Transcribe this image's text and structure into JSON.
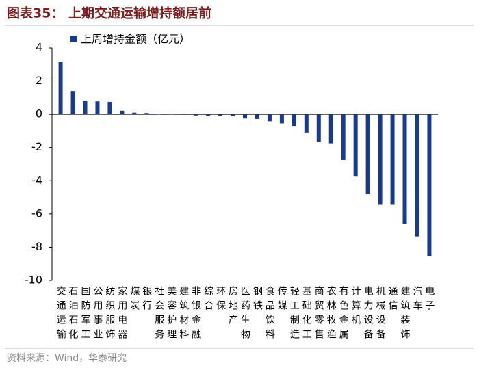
{
  "chart_data": {
    "type": "bar",
    "title": "图表35： 上期交通运输增持额居前",
    "source": "资料来源：Wind，华泰研究",
    "categories": [
      "交通运输",
      "石油石化",
      "国防军工",
      "公用事业",
      "纺织服饰",
      "家用电器",
      "煤炭",
      "银行",
      "社会服务",
      "美容护理",
      "建筑材料",
      "非银金融",
      "综合",
      "环保",
      "房地产",
      "医药生物",
      "钢铁",
      "食品饮料",
      "传媒",
      "轻工制造",
      "基础化工",
      "商贸零售",
      "农林牧渔",
      "有色金属",
      "计算机",
      "电力设备",
      "机械设备",
      "通信",
      "建筑装饰",
      "汽车",
      "电子"
    ],
    "series": [
      {
        "name": "上周增持金额（亿元）",
        "color": "#1a3a8a",
        "values": [
          3.15,
          1.4,
          0.82,
          0.78,
          0.75,
          0.22,
          0.1,
          0.08,
          0.01,
          0.01,
          -0.02,
          -0.07,
          -0.08,
          -0.1,
          -0.12,
          -0.25,
          -0.28,
          -0.42,
          -0.55,
          -0.7,
          -1.1,
          -1.65,
          -1.75,
          -2.75,
          -3.75,
          -4.8,
          -5.45,
          -5.45,
          -6.6,
          -7.35,
          -8.55
        ]
      }
    ],
    "ylim": [
      -10,
      4
    ],
    "yticks": [
      -10,
      -8,
      -6,
      -4,
      -2,
      0,
      2,
      4
    ],
    "grid": false
  }
}
